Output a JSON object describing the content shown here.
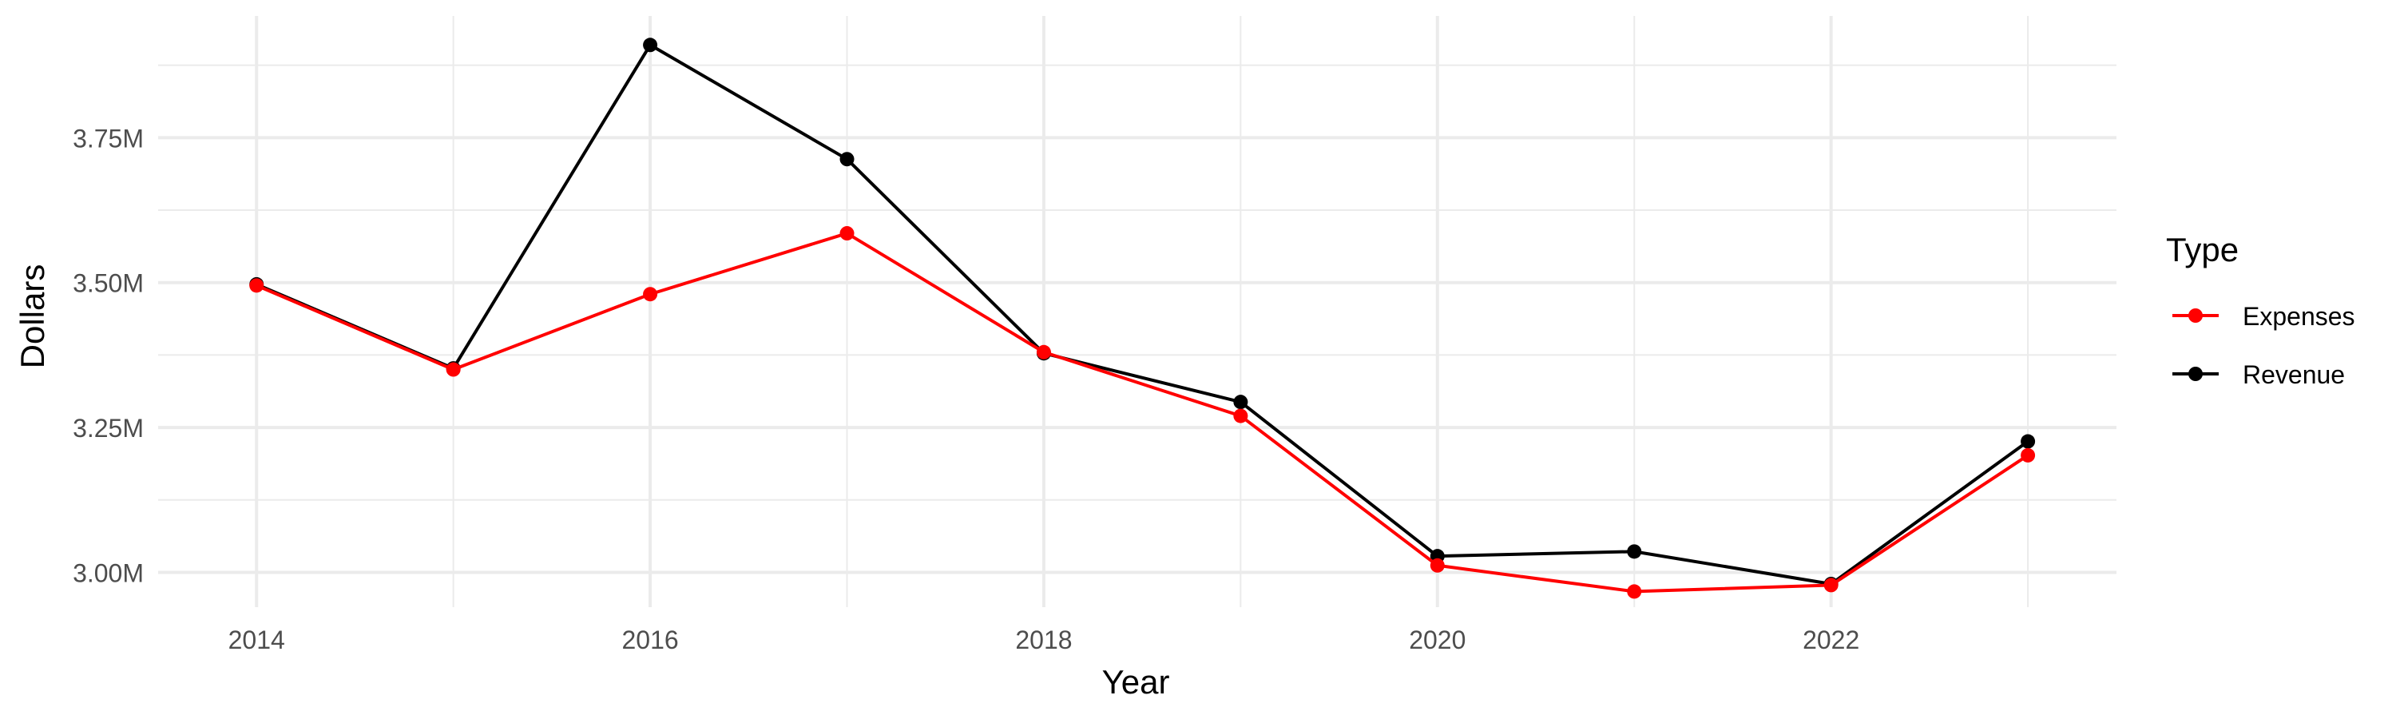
{
  "chart_data": {
    "type": "line",
    "title": "",
    "xlabel": "Year",
    "ylabel": "Dollars",
    "x": [
      2014,
      2015,
      2016,
      2017,
      2018,
      2019,
      2020,
      2021,
      2022,
      2023
    ],
    "x_ticks": [
      "2014",
      "2016",
      "2018",
      "2020",
      "2022"
    ],
    "x_tick_values": [
      2014,
      2016,
      2018,
      2020,
      2022
    ],
    "y_ticks": [
      "3.00M",
      "3.25M",
      "3.50M",
      "3.75M"
    ],
    "y_tick_values": [
      3000000,
      3250000,
      3500000,
      3750000
    ],
    "xlim": [
      2013.5,
      2023.45
    ],
    "ylim": [
      2940000,
      3960000
    ],
    "grid": true,
    "legend": {
      "title": "Type",
      "placement": "right"
    },
    "series": [
      {
        "name": "Expenses",
        "color": "#ff0000",
        "values": [
          3495000,
          3350000,
          3480000,
          3585000,
          3380000,
          3270000,
          3012000,
          2967000,
          2978000,
          3202000
        ]
      },
      {
        "name": "Revenue",
        "color": "#000000",
        "values": [
          3497000,
          3352000,
          3910000,
          3713000,
          3378000,
          3294000,
          3028000,
          3036000,
          2980000,
          3226000
        ]
      }
    ]
  }
}
